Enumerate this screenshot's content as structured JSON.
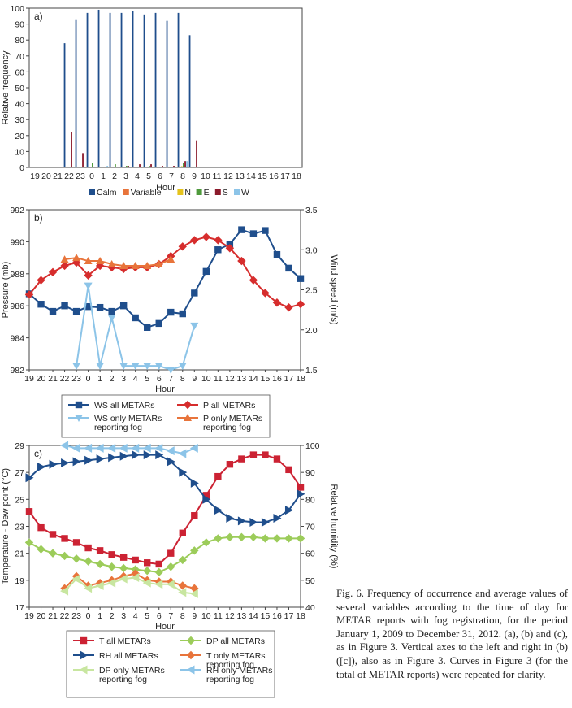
{
  "caption": "Fig. 6. Frequency of occurrence and average values of several variables according to the time of day for METAR reports with fog registration, for the period January 1, 2009 to December 31, 2012. (a), (b) and (c), as in Figure 3. Vertical axes to the left and right in (b) ([c]), also as in Figure 3. Curves in Figure 3 (for the total of METAR reports) were repeated for clarity.",
  "chart_data": [
    {
      "type": "bar",
      "panel": "a)",
      "categories": [
        "19",
        "20",
        "21",
        "22",
        "23",
        "0",
        "1",
        "2",
        "3",
        "4",
        "5",
        "6",
        "7",
        "8",
        "9",
        "10",
        "11",
        "12",
        "13",
        "14",
        "15",
        "16",
        "17",
        "18"
      ],
      "xlabel": "Hour",
      "ylabel": "Relative frequency",
      "ylim": [
        0,
        100
      ],
      "yticks": [
        0,
        10,
        20,
        30,
        40,
        50,
        60,
        70,
        80,
        90,
        100
      ],
      "series": [
        {
          "name": "Calm",
          "color": "#1f4e8c",
          "values": [
            0,
            0,
            0,
            78,
            93,
            97,
            99,
            97,
            97,
            98,
            96,
            97,
            92,
            97,
            83,
            0,
            0,
            0,
            0,
            0,
            0,
            0,
            0,
            0
          ]
        },
        {
          "name": "Variable",
          "color": "#e8743b",
          "values": [
            0,
            0,
            0,
            0,
            0,
            0,
            0,
            0,
            0,
            0,
            0,
            0,
            0,
            0,
            0,
            0,
            0,
            0,
            0,
            0,
            0,
            0,
            0,
            0
          ]
        },
        {
          "name": "N",
          "color": "#e5c31c",
          "values": [
            0,
            0,
            0,
            0,
            0,
            0,
            0,
            0,
            0,
            0,
            0,
            0,
            0,
            0.8,
            0,
            0,
            0,
            0,
            0,
            0,
            0,
            0,
            0,
            0
          ]
        },
        {
          "name": "E",
          "color": "#4e9a3c",
          "values": [
            0,
            0,
            0,
            0,
            0,
            3,
            0,
            2,
            1,
            0,
            1,
            0,
            0,
            3,
            0,
            0,
            0,
            0,
            0,
            0,
            0,
            0,
            0,
            0
          ]
        },
        {
          "name": "S",
          "color": "#8b1a2b",
          "values": [
            0,
            0,
            0,
            22,
            9,
            0,
            0,
            0,
            1,
            2,
            2,
            1,
            1,
            4,
            17,
            0,
            0,
            0,
            0,
            0,
            0,
            0,
            0,
            0
          ]
        },
        {
          "name": "W",
          "color": "#8cc4e8",
          "values": [
            0,
            0,
            0,
            0,
            0,
            0,
            1,
            0,
            0,
            0,
            0,
            0,
            0,
            4,
            0,
            0,
            0,
            0,
            0,
            0,
            0,
            0,
            0,
            0
          ]
        }
      ]
    },
    {
      "type": "line",
      "panel": "b)",
      "categories": [
        "19",
        "20",
        "21",
        "22",
        "23",
        "0",
        "1",
        "2",
        "3",
        "4",
        "5",
        "6",
        "7",
        "8",
        "9",
        "10",
        "11",
        "12",
        "13",
        "14",
        "15",
        "16",
        "17",
        "18"
      ],
      "xlabel": "Hour",
      "ylabel": "Pressure (mb)",
      "ylabel_right": "Wind speed (m/s)",
      "ylim": [
        982,
        992
      ],
      "yticks": [
        982,
        984,
        986,
        988,
        990,
        992
      ],
      "ylim_right": [
        1.5,
        3.5
      ],
      "yticks_right": [
        "1.5",
        "2.0",
        "2.5",
        "3.0",
        "3.5"
      ],
      "series": [
        {
          "name": "WS all METARs",
          "axis": "right",
          "color": "#1f4e8c",
          "marker": "square",
          "values": [
            2.45,
            2.32,
            2.23,
            2.3,
            2.23,
            2.29,
            2.28,
            2.23,
            2.3,
            2.15,
            2.03,
            2.08,
            2.22,
            2.2,
            2.46,
            2.73,
            3.0,
            3.07,
            3.25,
            3.2,
            3.24,
            2.94,
            2.77,
            2.64
          ]
        },
        {
          "name": "P all METARs",
          "axis": "left",
          "color": "#d62d2d",
          "marker": "diamond",
          "values": [
            986.7,
            987.6,
            988.1,
            988.5,
            988.7,
            987.9,
            988.5,
            988.4,
            988.3,
            988.4,
            988.4,
            988.6,
            989.1,
            989.7,
            990.1,
            990.3,
            990.1,
            989.6,
            988.8,
            987.6,
            986.8,
            986.2,
            985.9,
            986.1
          ]
        },
        {
          "name": "WS only METARs reporting fog",
          "axis": "right",
          "color": "#8cc4e8",
          "marker": "triangle-down",
          "values": [
            null,
            null,
            null,
            null,
            1.55,
            2.55,
            1.55,
            2.15,
            1.55,
            1.55,
            1.55,
            1.55,
            1.5,
            1.55,
            2.05,
            null,
            null,
            null,
            null,
            null,
            null,
            null,
            null,
            null
          ]
        },
        {
          "name": "P only METARs reporting fog",
          "axis": "left",
          "color": "#e8743b",
          "marker": "triangle-up",
          "values": [
            null,
            null,
            null,
            988.9,
            989.0,
            988.8,
            988.8,
            988.6,
            988.5,
            988.5,
            988.5,
            988.6,
            988.9,
            null,
            null,
            null,
            null,
            null,
            null,
            null,
            null,
            null,
            null,
            null
          ]
        }
      ]
    },
    {
      "type": "line",
      "panel": "c)",
      "categories": [
        "19",
        "20",
        "21",
        "22",
        "23",
        "0",
        "1",
        "2",
        "3",
        "4",
        "5",
        "6",
        "7",
        "8",
        "9",
        "10",
        "11",
        "12",
        "13",
        "14",
        "15",
        "16",
        "17",
        "18"
      ],
      "xlabel": "Hour",
      "ylabel": "Temperature - Dew point (°C)",
      "ylabel_right": "Relative humidity (%)",
      "ylim": [
        17,
        29
      ],
      "yticks": [
        17,
        19,
        21,
        23,
        25,
        27,
        29
      ],
      "ylim_right": [
        40,
        100
      ],
      "yticks_right": [
        40,
        50,
        60,
        70,
        80,
        90,
        100
      ],
      "series": [
        {
          "name": "T all METARs",
          "axis": "left",
          "color": "#cc2233",
          "marker": "square",
          "values": [
            24.1,
            22.9,
            22.4,
            22.1,
            21.8,
            21.4,
            21.2,
            20.9,
            20.7,
            20.5,
            20.3,
            20.2,
            21.0,
            22.5,
            23.8,
            25.3,
            26.7,
            27.6,
            28.0,
            28.3,
            28.3,
            28.0,
            27.2,
            25.9
          ]
        },
        {
          "name": "DP all METARs",
          "axis": "left",
          "color": "#9ccc5a",
          "marker": "diamond",
          "values": [
            21.8,
            21.3,
            21.0,
            20.8,
            20.6,
            20.4,
            20.2,
            20.0,
            19.9,
            19.8,
            19.7,
            19.6,
            20.0,
            20.5,
            21.2,
            21.8,
            22.1,
            22.2,
            22.2,
            22.2,
            22.1,
            22.1,
            22.1,
            22.1
          ]
        },
        {
          "name": "RH all METARs",
          "axis": "right",
          "color": "#1f4e8c",
          "marker": "triangle-right",
          "values": [
            88,
            92,
            93,
            93.5,
            94,
            94.5,
            95,
            95.5,
            96,
            96.5,
            96.5,
            96.5,
            94,
            90,
            86,
            80,
            76,
            73,
            72,
            71.5,
            71.5,
            73,
            76,
            82
          ]
        },
        {
          "name": "T only METARs reporting fog",
          "axis": "left",
          "color": "#e8743b",
          "marker": "diamond",
          "values": [
            null,
            null,
            null,
            18.4,
            19.3,
            18.6,
            18.8,
            19.0,
            19.3,
            19.5,
            19.0,
            18.9,
            18.9,
            18.6,
            18.4,
            null,
            null,
            null,
            null,
            null,
            null,
            null,
            null,
            null
          ]
        },
        {
          "name": "DP only METARs reporting fog",
          "axis": "left",
          "color": "#c8e6a0",
          "marker": "triangle-left",
          "values": [
            null,
            null,
            null,
            18.2,
            19.1,
            18.4,
            18.6,
            18.8,
            19.1,
            19.2,
            18.8,
            18.7,
            18.7,
            18.1,
            18.0,
            null,
            null,
            null,
            null,
            null,
            null,
            null,
            null,
            null
          ]
        },
        {
          "name": "RH only METARs reporting fog",
          "axis": "right",
          "color": "#8cc4e8",
          "marker": "triangle-left",
          "values": [
            null,
            null,
            null,
            100,
            99,
            99,
            99,
            99,
            99,
            99,
            99,
            99,
            98,
            97,
            99,
            null,
            null,
            null,
            null,
            null,
            null,
            null,
            null,
            null
          ]
        }
      ]
    }
  ]
}
